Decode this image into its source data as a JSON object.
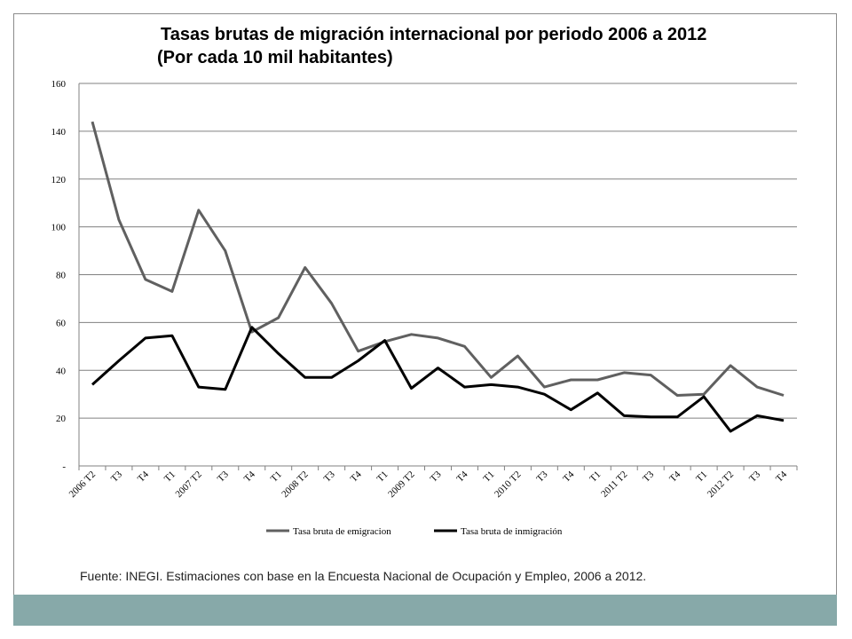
{
  "header": {
    "title": "Tasas brutas de migración internacional por periodo 2006 a 2012",
    "subtitle": "(Por cada 10 mil habitantes)"
  },
  "source_note": "Fuente: INEGI. Estimaciones con base en la Encuesta Nacional de Ocupación y Empleo, 2006 a 2012.",
  "colors": {
    "emigration": "#606060",
    "immigration": "#000000",
    "footer_band": "#87a9a9",
    "grid": "#808080"
  },
  "chart_data": {
    "type": "line",
    "title": "Tasas brutas de migración internacional por periodo 2006 a 2012",
    "subtitle": "(Por cada 10 mil habitantes)",
    "categories": [
      "2006 T2",
      "T3",
      "T4",
      "T1",
      "2007 T2",
      "T3",
      "T4",
      "T1",
      "2008 T2",
      "T3",
      "T4",
      "T1",
      "2009 T2",
      "T3",
      "T4",
      "T1",
      "2010 T2",
      "T3",
      "T4",
      "T1",
      "2011 T2",
      "T3",
      "T4",
      "T1",
      "2012 T2",
      "T3",
      "T4"
    ],
    "y_ticks": [
      "-",
      "20",
      "40",
      "60",
      "80",
      "100",
      "120",
      "140",
      "160"
    ],
    "ylim": [
      0,
      160
    ],
    "grid": true,
    "legend_position": "bottom",
    "series": [
      {
        "name": "Tasa bruta de emigracion",
        "color": "#606060",
        "values": [
          144,
          103,
          78,
          73,
          107,
          90,
          56,
          62,
          83,
          68,
          48,
          52,
          55,
          53.5,
          50,
          37,
          46,
          33,
          36,
          36,
          39,
          38,
          29.5,
          30,
          42,
          33,
          29.5
        ]
      },
      {
        "name": "Tasa bruta de inmigración",
        "color": "#000000",
        "values": [
          34,
          44,
          53.5,
          54.5,
          33,
          32,
          58,
          47,
          37,
          37,
          44,
          52.5,
          32.5,
          41,
          33,
          34,
          33,
          30,
          23.5,
          30.5,
          21,
          20.5,
          20.5,
          29,
          14.5,
          21,
          19
        ]
      }
    ]
  }
}
